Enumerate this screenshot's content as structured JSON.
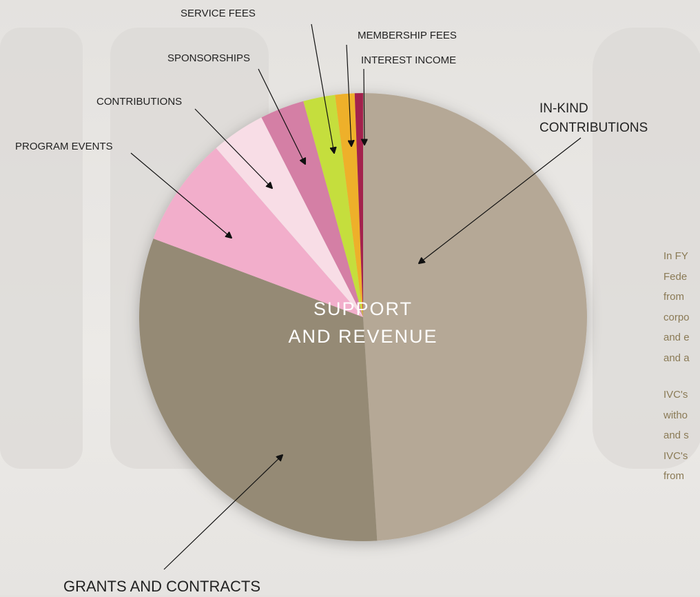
{
  "chart_data": {
    "type": "pie",
    "title": [
      "SUPPORT",
      "AND REVENUE"
    ],
    "categories": [
      "IN-KIND CONTRIBUTIONS",
      "GRANTS AND CONTRACTS",
      "PROGRAM EVENTS",
      "CONTRIBUTIONS",
      "SPONSORSHIPS",
      "SERVICE FEES",
      "MEMBERSHIP FEES",
      "INTEREST INCOME"
    ],
    "values": [
      49,
      31.7,
      7.9,
      3.9,
      3.2,
      2.3,
      1.4,
      0.6
    ],
    "colors": [
      "#b5a896",
      "#958a75",
      "#f2aecb",
      "#f8dde6",
      "#d47fa5",
      "#c5de3e",
      "#eeb02a",
      "#a3224e"
    ]
  },
  "side_text": [
    [
      "In FY",
      "Fede",
      "from",
      "corpo",
      "and e",
      "and a"
    ],
    [
      "IVC's",
      "witho",
      "and s",
      "IVC's",
      "from"
    ]
  ]
}
